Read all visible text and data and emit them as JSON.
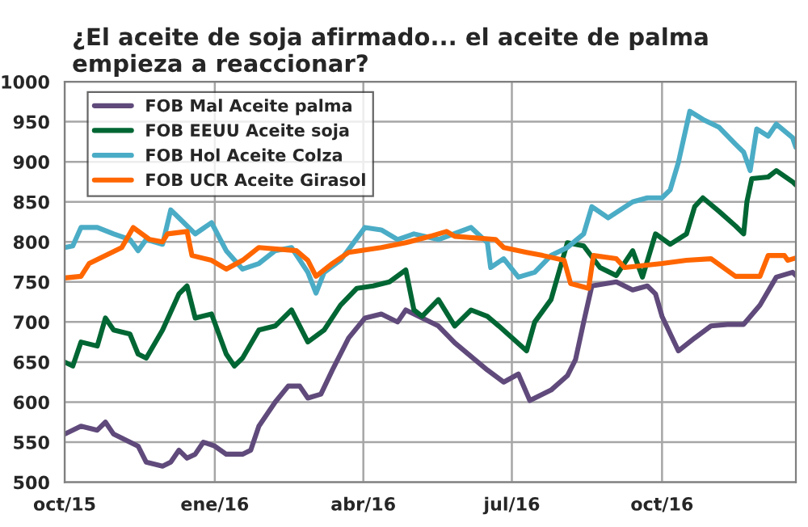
{
  "chart_data": {
    "type": "line",
    "title": "¿El aceite de soja afirmado... el aceite de palma empieza a reaccionar?",
    "xlim": [
      "2015-10-01",
      "2016-12-22"
    ],
    "xticks": [
      {
        "value": "2015-10-01",
        "label": "oct/15"
      },
      {
        "value": "2016-01-01",
        "label": "ene/16"
      },
      {
        "value": "2016-04-01",
        "label": "abr/16"
      },
      {
        "value": "2016-07-01",
        "label": "jul/16"
      },
      {
        "value": "2016-10-01",
        "label": "oct/16"
      }
    ],
    "ylim": [
      500,
      1000
    ],
    "yticks": [
      500,
      550,
      600,
      650,
      700,
      750,
      800,
      850,
      900,
      950,
      1000
    ],
    "grid": true,
    "legend": "top left",
    "marker": "none",
    "line_style": "solid",
    "series": [
      {
        "name": "FOB Mal Aceite palma",
        "color": "#604a7b",
        "x": [
          "2015-10-01",
          "2015-10-11",
          "2015-10-21",
          "2015-10-26",
          "2015-10-31",
          "2015-11-10",
          "2015-11-15",
          "2015-11-20",
          "2015-11-30",
          "2015-12-05",
          "2015-12-10",
          "2015-12-15",
          "2015-12-20",
          "2015-12-25",
          "2016-01-01",
          "2016-01-08",
          "2016-01-18",
          "2016-01-23",
          "2016-01-28",
          "2016-02-07",
          "2016-02-15",
          "2016-02-22",
          "2016-02-27",
          "2016-03-06",
          "2016-03-13",
          "2016-03-23",
          "2016-04-02",
          "2016-04-12",
          "2016-04-22",
          "2016-04-27",
          "2016-05-17",
          "2016-05-27",
          "2016-06-16",
          "2016-06-26",
          "2016-07-05",
          "2016-07-12",
          "2016-07-25",
          "2016-08-04",
          "2016-08-09",
          "2016-08-14",
          "2016-08-19",
          "2016-09-03",
          "2016-09-13",
          "2016-09-22",
          "2016-09-27",
          "2016-10-01",
          "2016-10-11",
          "2016-10-21",
          "2016-10-31",
          "2016-11-10",
          "2016-11-20",
          "2016-11-30",
          "2016-12-10",
          "2016-12-20",
          "2016-12-22"
        ],
        "values": [
          560,
          570,
          565,
          575,
          560,
          550,
          545,
          525,
          520,
          525,
          540,
          530,
          535,
          550,
          545,
          535,
          535,
          540,
          570,
          600,
          620,
          620,
          605,
          610,
          640,
          680,
          705,
          710,
          700,
          715,
          695,
          674,
          640,
          625,
          635,
          602,
          615,
          633,
          653,
          700,
          745,
          750,
          740,
          745,
          735,
          707,
          664,
          680,
          695,
          697,
          697,
          721,
          756,
          762,
          758
        ]
      },
      {
        "name": "FOB EEUU Aceite soja",
        "color": "#006633",
        "x": [
          "2015-10-01",
          "2015-10-06",
          "2015-10-11",
          "2015-10-21",
          "2015-10-26",
          "2015-10-31",
          "2015-11-10",
          "2015-11-15",
          "2015-11-20",
          "2015-11-30",
          "2015-12-10",
          "2015-12-15",
          "2015-12-20",
          "2015-12-30",
          "2016-01-08",
          "2016-01-13",
          "2016-01-18",
          "2016-01-28",
          "2016-02-07",
          "2016-02-17",
          "2016-02-27",
          "2016-03-08",
          "2016-03-18",
          "2016-03-28",
          "2016-04-07",
          "2016-04-17",
          "2016-04-27",
          "2016-05-02",
          "2016-05-07",
          "2016-05-17",
          "2016-05-27",
          "2016-06-06",
          "2016-06-16",
          "2016-06-23",
          "2016-07-10",
          "2016-07-15",
          "2016-07-25",
          "2016-08-04",
          "2016-08-14",
          "2016-08-24",
          "2016-09-03",
          "2016-09-13",
          "2016-09-19",
          "2016-09-27",
          "2016-10-06",
          "2016-10-16",
          "2016-10-21",
          "2016-10-26",
          "2016-11-05",
          "2016-11-15",
          "2016-11-20",
          "2016-11-22",
          "2016-11-25",
          "2016-12-05",
          "2016-12-10",
          "2016-12-20",
          "2016-12-22"
        ],
        "values": [
          650,
          645,
          675,
          670,
          705,
          690,
          685,
          660,
          655,
          690,
          735,
          745,
          705,
          710,
          660,
          645,
          655,
          690,
          695,
          715,
          675,
          690,
          721,
          742,
          745,
          750,
          765,
          715,
          707,
          728,
          695,
          715,
          707,
          695,
          664,
          700,
          728,
          799,
          795,
          768,
          758,
          789,
          756,
          810,
          797,
          810,
          844,
          855,
          838,
          820,
          810,
          850,
          879,
          881,
          889,
          875,
          871
        ]
      },
      {
        "name": "FOB Hol Aceite Colza",
        "color": "#4bacc6",
        "x": [
          "2015-10-01",
          "2015-10-06",
          "2015-10-11",
          "2015-10-21",
          "2015-10-31",
          "2015-11-10",
          "2015-11-15",
          "2015-11-20",
          "2015-11-30",
          "2015-12-05",
          "2015-12-10",
          "2015-12-20",
          "2015-12-30",
          "2016-01-08",
          "2016-01-18",
          "2016-01-28",
          "2016-02-07",
          "2016-02-17",
          "2016-02-27",
          "2016-03-03",
          "2016-03-08",
          "2016-03-18",
          "2016-04-02",
          "2016-04-12",
          "2016-04-22",
          "2016-05-02",
          "2016-05-17",
          "2016-06-06",
          "2016-06-16",
          "2016-06-18",
          "2016-06-26",
          "2016-07-05",
          "2016-07-15",
          "2016-07-25",
          "2016-08-04",
          "2016-08-14",
          "2016-08-19",
          "2016-08-29",
          "2016-09-13",
          "2016-09-22",
          "2016-10-01",
          "2016-10-06",
          "2016-10-11",
          "2016-10-18",
          "2016-10-26",
          "2016-11-05",
          "2016-11-15",
          "2016-11-20",
          "2016-11-24",
          "2016-11-28",
          "2016-12-05",
          "2016-12-10",
          "2016-12-20",
          "2016-12-22"
        ],
        "values": [
          793,
          795,
          818,
          818,
          810,
          803,
          789,
          803,
          797,
          840,
          830,
          810,
          824,
          789,
          766,
          773,
          789,
          793,
          762,
          736,
          762,
          777,
          818,
          815,
          803,
          810,
          803,
          818,
          799,
          768,
          779,
          756,
          762,
          783,
          793,
          810,
          844,
          830,
          850,
          855,
          855,
          865,
          899,
          963,
          953,
          943,
          922,
          912,
          889,
          941,
          932,
          947,
          930,
          918
        ]
      },
      {
        "name": "FOB UCR Aceite Girasol",
        "color": "#ff6600",
        "x": [
          "2015-10-01",
          "2015-10-11",
          "2015-10-16",
          "2015-11-05",
          "2015-11-12",
          "2015-11-22",
          "2015-11-30",
          "2015-12-03",
          "2015-12-15",
          "2015-12-18",
          "2015-12-30",
          "2016-01-08",
          "2016-01-18",
          "2016-01-28",
          "2016-02-20",
          "2016-02-27",
          "2016-03-03",
          "2016-03-13",
          "2016-03-23",
          "2016-04-12",
          "2016-04-22",
          "2016-04-27",
          "2016-05-12",
          "2016-05-22",
          "2016-05-27",
          "2016-06-21",
          "2016-06-26",
          "2016-07-10",
          "2016-07-20",
          "2016-08-02",
          "2016-08-06",
          "2016-08-17",
          "2016-08-20",
          "2016-09-03",
          "2016-09-08",
          "2016-10-01",
          "2016-10-16",
          "2016-10-31",
          "2016-11-15",
          "2016-11-30",
          "2016-12-05",
          "2016-12-15",
          "2016-12-17",
          "2016-12-22"
        ],
        "values": [
          755,
          757,
          773,
          793,
          818,
          803,
          800,
          810,
          813,
          783,
          777,
          766,
          777,
          793,
          789,
          777,
          757,
          773,
          787,
          793,
          797,
          799,
          807,
          813,
          807,
          803,
          793,
          787,
          783,
          777,
          748,
          742,
          783,
          779,
          768,
          773,
          777,
          779,
          757,
          757,
          783,
          783,
          777,
          780
        ]
      }
    ]
  }
}
